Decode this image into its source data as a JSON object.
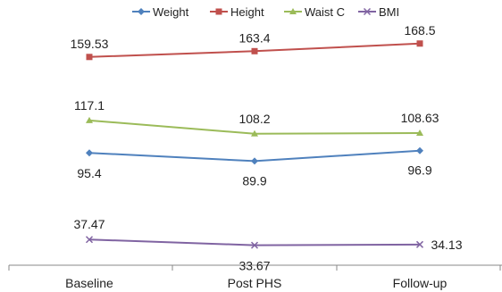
{
  "chart_data": {
    "type": "line",
    "categories": [
      "Baseline",
      "Post PHS",
      "Follow-up"
    ],
    "legend_position": "top",
    "grid": false,
    "ylim": [
      0,
      180
    ],
    "series": [
      {
        "name": "Weight",
        "values": [
          95.4,
          89.9,
          96.9
        ],
        "labels": [
          "95.4",
          "89.9",
          "96.9"
        ],
        "color": "#4f81bd",
        "marker": "diamond"
      },
      {
        "name": "Height",
        "values": [
          159.53,
          163.4,
          168.5
        ],
        "labels": [
          "159.53",
          "163.4",
          "168.5"
        ],
        "color": "#c0504d",
        "marker": "square"
      },
      {
        "name": "Waist C",
        "values": [
          117.1,
          108.2,
          108.63
        ],
        "labels": [
          "117.1",
          "108.2",
          "108.63"
        ],
        "color": "#9bbb59",
        "marker": "triangle"
      },
      {
        "name": "BMI",
        "values": [
          37.47,
          33.67,
          34.13
        ],
        "labels": [
          "37.47",
          "33.67",
          "34.13"
        ],
        "color": "#8064a2",
        "marker": "x"
      }
    ]
  }
}
